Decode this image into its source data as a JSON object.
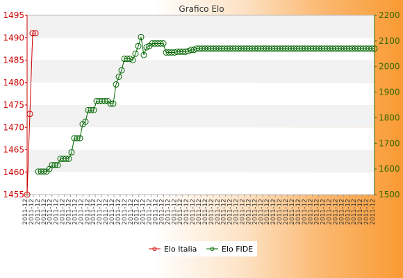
{
  "chart_data": {
    "type": "line",
    "title": "Grafico Elo",
    "left_axis": {
      "min": 1455,
      "max": 1495,
      "ticks": [
        1455,
        1460,
        1465,
        1470,
        1475,
        1480,
        1485,
        1490,
        1495
      ],
      "color": "#cc0000"
    },
    "right_axis": {
      "min": 1500,
      "max": 2200,
      "ticks": [
        1500,
        1600,
        1700,
        1800,
        1900,
        2000,
        2100,
        2200
      ],
      "color": "#336600"
    },
    "x_tick_count": 57,
    "x_tick_label": "2011-12",
    "legend_position": "bottom",
    "band_colors": [
      "#f2f2f2",
      "#ffffff"
    ],
    "series": [
      {
        "name": "Elo Italia",
        "axis": "left",
        "color": "#cc0000",
        "values": [
          1455,
          1473,
          1491,
          1491
        ]
      },
      {
        "name": "Elo FIDE",
        "axis": "right",
        "color": "#006600",
        "start_index": 4,
        "values": [
          1590,
          1590,
          1590,
          1590,
          1600,
          1615,
          1615,
          1615,
          1640,
          1640,
          1640,
          1640,
          1665,
          1720,
          1720,
          1720,
          1775,
          1785,
          1830,
          1830,
          1830,
          1865,
          1865,
          1865,
          1865,
          1865,
          1855,
          1855,
          1930,
          1960,
          1985,
          2030,
          2030,
          2030,
          2025,
          2050,
          2080,
          2115,
          2045,
          2075,
          2080,
          2090,
          2090,
          2090,
          2090,
          2090,
          2055,
          2055,
          2055,
          2055,
          2058,
          2058,
          2058,
          2058,
          2060,
          2065,
          2065,
          2070,
          2070,
          2070,
          2070,
          2070,
          2070,
          2070,
          2070,
          2070,
          2070,
          2070,
          2070,
          2070,
          2070,
          2070,
          2070,
          2070,
          2070,
          2070,
          2070,
          2070,
          2070,
          2070,
          2070,
          2070,
          2070,
          2070,
          2070,
          2070,
          2070,
          2070,
          2070,
          2070,
          2070,
          2070,
          2070,
          2070,
          2070,
          2070,
          2070,
          2070,
          2070,
          2070,
          2070,
          2070,
          2070,
          2070,
          2070,
          2070,
          2070,
          2070,
          2070,
          2070,
          2070,
          2070,
          2070,
          2070,
          2070,
          2070,
          2070,
          2070,
          2070,
          2070,
          2070,
          2070
        ]
      }
    ]
  }
}
